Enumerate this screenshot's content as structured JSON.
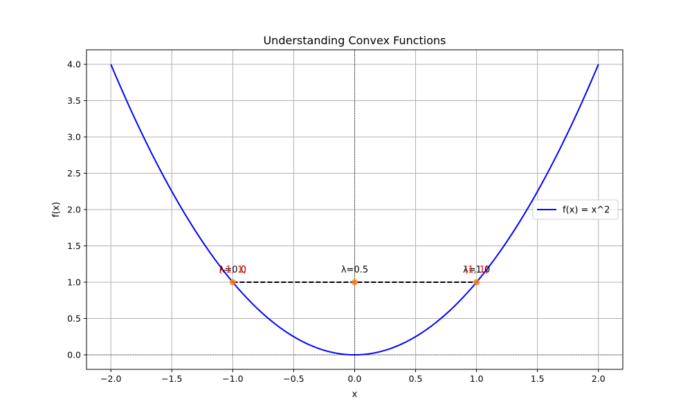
{
  "chart_data": {
    "type": "line",
    "title": "Understanding Convex Functions",
    "xlabel": "x",
    "ylabel": "f(x)",
    "xlim": [
      -2.2,
      2.2
    ],
    "ylim": [
      -0.2,
      4.2
    ],
    "xticks": [
      -2.0,
      -1.5,
      -1.0,
      -0.5,
      0.0,
      0.5,
      1.0,
      1.5,
      2.0
    ],
    "xtick_labels": [
      "−2.0",
      "−1.5",
      "−1.0",
      "−0.5",
      "0.0",
      "0.5",
      "1.0",
      "1.5",
      "2.0"
    ],
    "yticks": [
      0.0,
      0.5,
      1.0,
      1.5,
      2.0,
      2.5,
      3.0,
      3.5,
      4.0
    ],
    "ytick_labels": [
      "0.0",
      "0.5",
      "1.0",
      "1.5",
      "2.0",
      "2.5",
      "3.0",
      "3.5",
      "4.0"
    ],
    "grid": true,
    "legend_position": "center-right",
    "series": [
      {
        "name": "f(x) = x^2",
        "function": "x^2",
        "x_range": [
          -2.0,
          2.0
        ],
        "color": "#0000ff"
      }
    ],
    "chord": {
      "points": [
        [
          -1.0,
          1.0
        ],
        [
          1.0,
          1.0
        ]
      ],
      "color": "#000000",
      "style": "dashed"
    },
    "points": [
      {
        "x": -1.0,
        "y": 1.0,
        "color": "#ff7f0e"
      },
      {
        "x": 0.0,
        "y": 1.0,
        "color": "#ff7f0e"
      },
      {
        "x": 1.0,
        "y": 1.0,
        "color": "#ff7f0e"
      }
    ],
    "annotations": [
      {
        "x": -1.0,
        "y": 1.0,
        "text": "λ=0.0",
        "color": "#000000"
      },
      {
        "x": -1.0,
        "y": 1.0,
        "text": "(-1, 1)",
        "color": "#ff0000"
      },
      {
        "x": 0.0,
        "y": 1.0,
        "text": "λ=0.5",
        "color": "#000000"
      },
      {
        "x": 1.0,
        "y": 1.0,
        "text": "λ=1.0",
        "color": "#000000"
      },
      {
        "x": 1.0,
        "y": 1.0,
        "text": "(1, 1)",
        "color": "#ff0000"
      }
    ],
    "reference_lines": [
      {
        "orientation": "horizontal",
        "value": 0.0,
        "color": "#000000",
        "style": "dashed"
      },
      {
        "orientation": "vertical",
        "value": 0.0,
        "color": "#000000",
        "style": "dashed"
      }
    ]
  }
}
